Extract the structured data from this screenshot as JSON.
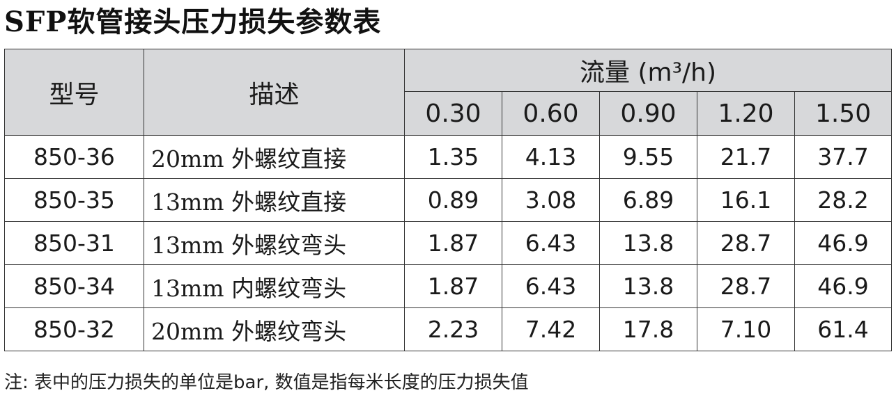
{
  "title": "SFP软管接头压力损失参数表",
  "table": {
    "header": {
      "model": "型号",
      "description": "描述",
      "flow": "流量 (m³/h)",
      "flow_values": [
        "0.30",
        "0.60",
        "0.90",
        "1.20",
        "1.50"
      ]
    },
    "rows": [
      {
        "model": "850-36",
        "description": "20mm 外螺纹直接",
        "values": [
          "1.35",
          "4.13",
          "9.55",
          "21.7",
          "37.7"
        ]
      },
      {
        "model": "850-35",
        "description": "13mm 外螺纹直接",
        "values": [
          "0.89",
          "3.08",
          "6.89",
          "16.1",
          "28.2"
        ]
      },
      {
        "model": "850-31",
        "description": "13mm 外螺纹弯头",
        "values": [
          "1.87",
          "6.43",
          "13.8",
          "28.7",
          "46.9"
        ]
      },
      {
        "model": "850-34",
        "description": "13mm 内螺纹弯头",
        "values": [
          "1.87",
          "6.43",
          "13.8",
          "28.7",
          "46.9"
        ]
      },
      {
        "model": "850-32",
        "description": "20mm 外螺纹弯头",
        "values": [
          "2.23",
          "7.42",
          "17.8",
          "7.10",
          "61.4"
        ]
      }
    ]
  },
  "note": "注: 表中的压力损失的单位是bar, 数值是指每米长度的压力损失值",
  "colors": {
    "header_background": "#d7d8da",
    "border": "#333333"
  }
}
